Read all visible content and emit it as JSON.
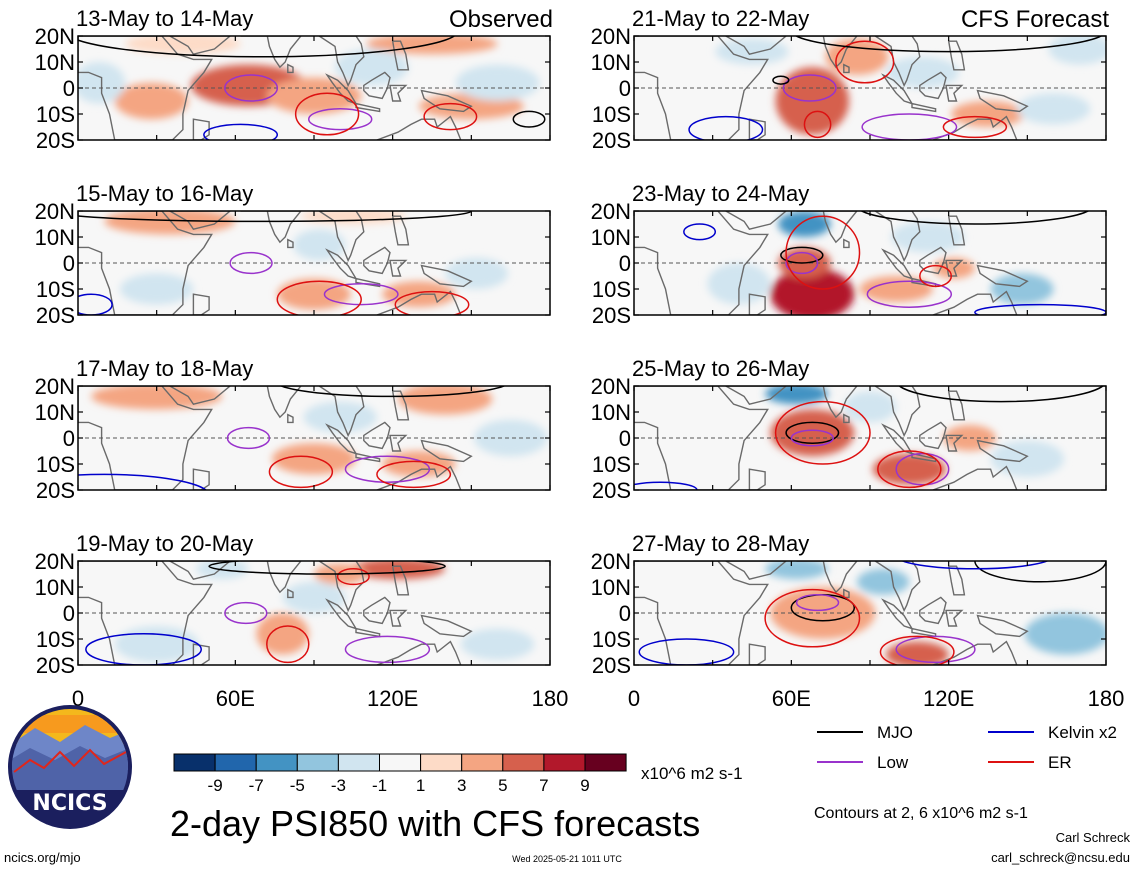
{
  "chart_data": {
    "type": "heatmap",
    "title": "2-day PSI850 with CFS forecasts",
    "source_url": "ncics.org/mjo",
    "timestamp": "Wed 2025-05-21 1011 UTC",
    "author": "Carl Schreck",
    "email": "carl_schreck@ncsu.edu",
    "contours_note": "Contours at 2, 6 x10^6 m2 s-1",
    "units": "x10^6 m2 s-1",
    "logo_text": "NCICS",
    "colorbar": {
      "levels": [
        "-9",
        "-7",
        "-5",
        "-3",
        "-1",
        "1",
        "3",
        "5",
        "7",
        "9"
      ],
      "colors": [
        "#08306b",
        "#2166ac",
        "#4393c3",
        "#92c5de",
        "#d1e5f0",
        "#f7f7f7",
        "#fddbc7",
        "#f4a582",
        "#d6604d",
        "#b2182b",
        "#67001f"
      ]
    },
    "x_ticks": [
      "0",
      "60E",
      "120E",
      "180"
    ],
    "y_ticks": [
      "20N",
      "10N",
      "0",
      "10S",
      "20S"
    ],
    "xlim": [
      0,
      180
    ],
    "ylim": [
      -20,
      20
    ],
    "legend": [
      {
        "name": "MJO",
        "color": "#000000"
      },
      {
        "name": "Kelvin x2",
        "color": "#0000cc"
      },
      {
        "name": "Low",
        "color": "#9933cc"
      },
      {
        "name": "ER",
        "color": "#dd1111"
      }
    ],
    "column_labels": [
      "Observed",
      "CFS Forecast"
    ],
    "panels": [
      {
        "title": "13-May to 14-May",
        "group": "Observed",
        "anomalies": [
          {
            "lon": 65,
            "lat": 1,
            "v": 6,
            "rx": 22,
            "ry": 8
          },
          {
            "lon": 90,
            "lat": -3,
            "v": 4,
            "rx": 18,
            "ry": 7
          },
          {
            "lon": 150,
            "lat": -7,
            "v": 4,
            "rx": 20,
            "ry": 5
          },
          {
            "lon": 28,
            "lat": -5,
            "v": 3,
            "rx": 14,
            "ry": 7
          },
          {
            "lon": 135,
            "lat": 17,
            "v": 3,
            "rx": 25,
            "ry": 4
          },
          {
            "lon": 40,
            "lat": 17,
            "v": 2,
            "rx": 22,
            "ry": 4
          },
          {
            "lon": 112,
            "lat": 8,
            "v": -3,
            "rx": 14,
            "ry": 7
          },
          {
            "lon": 160,
            "lat": 2,
            "v": -2,
            "rx": 16,
            "ry": 7
          },
          {
            "lon": 8,
            "lat": 2,
            "v": -2,
            "rx": 10,
            "ry": 8
          }
        ],
        "contours": [
          {
            "wave": "Low",
            "lon": 66,
            "lat": 0,
            "rx": 10,
            "ry": 5
          },
          {
            "wave": "Low",
            "lon": 100,
            "lat": -12,
            "rx": 12,
            "ry": 4
          },
          {
            "wave": "ER",
            "lon": 95,
            "lat": -10,
            "rx": 12,
            "ry": 8
          },
          {
            "wave": "ER",
            "lon": 142,
            "lat": -11,
            "rx": 10,
            "ry": 5
          },
          {
            "wave": "MJO",
            "lon": 172,
            "lat": -12,
            "rx": 6,
            "ry": 3
          },
          {
            "wave": "MJO",
            "lon": 70,
            "lat": 22,
            "rx": 75,
            "ry": 10
          },
          {
            "wave": "Kelvin x2",
            "lon": 62,
            "lat": -18,
            "rx": 14,
            "ry": 4
          }
        ]
      },
      {
        "title": "21-May to 22-May",
        "group": "CFS Forecast",
        "anomalies": [
          {
            "lon": 68,
            "lat": -5,
            "v": 6,
            "rx": 14,
            "ry": 13
          },
          {
            "lon": 85,
            "lat": 12,
            "v": 4,
            "rx": 12,
            "ry": 7
          },
          {
            "lon": 135,
            "lat": -10,
            "v": 4,
            "rx": 14,
            "ry": 5
          },
          {
            "lon": 110,
            "lat": 6,
            "v": -3,
            "rx": 14,
            "ry": 6
          },
          {
            "lon": 45,
            "lat": 14,
            "v": -2,
            "rx": 14,
            "ry": 5
          },
          {
            "lon": 170,
            "lat": 15,
            "v": -2,
            "rx": 12,
            "ry": 6
          },
          {
            "lon": 160,
            "lat": -8,
            "v": -2,
            "rx": 14,
            "ry": 6
          }
        ],
        "contours": [
          {
            "wave": "Low",
            "lon": 67,
            "lat": 0,
            "rx": 10,
            "ry": 5
          },
          {
            "wave": "Low",
            "lon": 105,
            "lat": -15,
            "rx": 18,
            "ry": 5
          },
          {
            "wave": "ER",
            "lon": 88,
            "lat": 10,
            "rx": 11,
            "ry": 8
          },
          {
            "wave": "ER",
            "lon": 70,
            "lat": -14,
            "rx": 5,
            "ry": 5
          },
          {
            "wave": "ER",
            "lon": 130,
            "lat": -15,
            "rx": 12,
            "ry": 4
          },
          {
            "wave": "MJO",
            "lon": 56,
            "lat": 3,
            "rx": 3,
            "ry": 1.5
          },
          {
            "wave": "MJO",
            "lon": 120,
            "lat": 22,
            "rx": 60,
            "ry": 8
          },
          {
            "wave": "Kelvin x2",
            "lon": 35,
            "lat": -16,
            "rx": 14,
            "ry": 5
          }
        ]
      },
      {
        "title": "15-May to 16-May",
        "group": "Observed",
        "anomalies": [
          {
            "lon": 35,
            "lat": 16,
            "v": 3,
            "rx": 25,
            "ry": 5
          },
          {
            "lon": 105,
            "lat": 18,
            "v": 2,
            "rx": 20,
            "ry": 3
          },
          {
            "lon": 90,
            "lat": -12,
            "v": 4,
            "rx": 14,
            "ry": 6
          },
          {
            "lon": 130,
            "lat": -12,
            "v": 3,
            "rx": 14,
            "ry": 5
          },
          {
            "lon": 92,
            "lat": 7,
            "v": -3,
            "rx": 10,
            "ry": 6
          },
          {
            "lon": 152,
            "lat": -4,
            "v": -3,
            "rx": 12,
            "ry": 6
          },
          {
            "lon": 30,
            "lat": -10,
            "v": -2,
            "rx": 14,
            "ry": 6
          }
        ],
        "contours": [
          {
            "wave": "Low",
            "lon": 66,
            "lat": 0,
            "rx": 8,
            "ry": 4
          },
          {
            "wave": "Low",
            "lon": 108,
            "lat": -12,
            "rx": 14,
            "ry": 4
          },
          {
            "wave": "ER",
            "lon": 92,
            "lat": -14,
            "rx": 16,
            "ry": 7
          },
          {
            "wave": "ER",
            "lon": 135,
            "lat": -16,
            "rx": 14,
            "ry": 5
          },
          {
            "wave": "MJO",
            "lon": 70,
            "lat": 20,
            "rx": 80,
            "ry": 4
          },
          {
            "wave": "Kelvin x2",
            "lon": 5,
            "lat": -16,
            "rx": 8,
            "ry": 4
          }
        ]
      },
      {
        "title": "23-May to 24-May",
        "group": "CFS Forecast",
        "anomalies": [
          {
            "lon": 68,
            "lat": -12,
            "v": 8,
            "rx": 16,
            "ry": 10
          },
          {
            "lon": 65,
            "lat": 0,
            "v": 5,
            "rx": 10,
            "ry": 6
          },
          {
            "lon": 100,
            "lat": -10,
            "v": 3,
            "rx": 14,
            "ry": 5
          },
          {
            "lon": 122,
            "lat": -2,
            "v": 3,
            "rx": 8,
            "ry": 4
          },
          {
            "lon": 65,
            "lat": 15,
            "v": -6,
            "rx": 10,
            "ry": 5
          },
          {
            "lon": 40,
            "lat": -8,
            "v": -3,
            "rx": 12,
            "ry": 8
          },
          {
            "lon": 112,
            "lat": 10,
            "v": -3,
            "rx": 14,
            "ry": 6
          },
          {
            "lon": 148,
            "lat": -10,
            "v": -4,
            "rx": 12,
            "ry": 6
          }
        ],
        "contours": [
          {
            "wave": "MJO",
            "lon": 64,
            "lat": 3,
            "rx": 8,
            "ry": 3
          },
          {
            "wave": "Low",
            "lon": 64,
            "lat": 0,
            "rx": 6,
            "ry": 4
          },
          {
            "wave": "Low",
            "lon": 105,
            "lat": -12,
            "rx": 16,
            "ry": 5
          },
          {
            "wave": "ER",
            "lon": 72,
            "lat": 4,
            "rx": 14,
            "ry": 14
          },
          {
            "wave": "ER",
            "lon": 115,
            "lat": -5,
            "rx": 6,
            "ry": 4
          },
          {
            "wave": "MJO",
            "lon": 130,
            "lat": 22,
            "rx": 45,
            "ry": 7
          },
          {
            "wave": "Kelvin x2",
            "lon": 25,
            "lat": 12,
            "rx": 6,
            "ry": 3
          },
          {
            "wave": "Kelvin x2",
            "lon": 155,
            "lat": -19,
            "rx": 25,
            "ry": 3
          }
        ]
      },
      {
        "title": "17-May to 18-May",
        "group": "Observed",
        "anomalies": [
          {
            "lon": 30,
            "lat": 16,
            "v": 3,
            "rx": 25,
            "ry": 5
          },
          {
            "lon": 140,
            "lat": 15,
            "v": 4,
            "rx": 18,
            "ry": 6
          },
          {
            "lon": 90,
            "lat": -8,
            "v": 3,
            "rx": 16,
            "ry": 6
          },
          {
            "lon": 130,
            "lat": -10,
            "v": 3,
            "rx": 14,
            "ry": 5
          },
          {
            "lon": 100,
            "lat": 8,
            "v": -2,
            "rx": 14,
            "ry": 6
          },
          {
            "lon": 165,
            "lat": 0,
            "v": -2,
            "rx": 14,
            "ry": 7
          }
        ],
        "contours": [
          {
            "wave": "Low",
            "lon": 65,
            "lat": 0,
            "rx": 8,
            "ry": 4
          },
          {
            "wave": "Low",
            "lon": 118,
            "lat": -12,
            "rx": 16,
            "ry": 5
          },
          {
            "wave": "ER",
            "lon": 85,
            "lat": -13,
            "rx": 12,
            "ry": 6
          },
          {
            "wave": "ER",
            "lon": 128,
            "lat": -14,
            "rx": 14,
            "ry": 5
          },
          {
            "wave": "MJO",
            "lon": 120,
            "lat": 22,
            "rx": 45,
            "ry": 6
          },
          {
            "wave": "Kelvin x2",
            "lon": 10,
            "lat": -22,
            "rx": 40,
            "ry": 8
          }
        ]
      },
      {
        "title": "25-May to 26-May",
        "group": "CFS Forecast",
        "anomalies": [
          {
            "lon": 70,
            "lat": 0,
            "v": 9,
            "rx": 10,
            "ry": 5
          },
          {
            "lon": 68,
            "lat": 2,
            "v": 6,
            "rx": 16,
            "ry": 9
          },
          {
            "lon": 105,
            "lat": -12,
            "v": 5,
            "rx": 14,
            "ry": 6
          },
          {
            "lon": 128,
            "lat": 0,
            "v": 3,
            "rx": 10,
            "ry": 5
          },
          {
            "lon": 62,
            "lat": 17,
            "v": -6,
            "rx": 12,
            "ry": 4
          },
          {
            "lon": 90,
            "lat": 12,
            "v": -3,
            "rx": 10,
            "ry": 6
          },
          {
            "lon": 150,
            "lat": -8,
            "v": -3,
            "rx": 14,
            "ry": 7
          }
        ],
        "contours": [
          {
            "wave": "MJO",
            "lon": 68,
            "lat": 2,
            "rx": 10,
            "ry": 4
          },
          {
            "wave": "Low",
            "lon": 68,
            "lat": 0,
            "rx": 8,
            "ry": 3
          },
          {
            "wave": "Low",
            "lon": 110,
            "lat": -12,
            "rx": 10,
            "ry": 6
          },
          {
            "wave": "ER",
            "lon": 72,
            "lat": 2,
            "rx": 18,
            "ry": 12
          },
          {
            "wave": "ER",
            "lon": 105,
            "lat": -12,
            "rx": 12,
            "ry": 7
          },
          {
            "wave": "MJO",
            "lon": 140,
            "lat": 22,
            "rx": 40,
            "ry": 8
          },
          {
            "wave": "Kelvin x2",
            "lon": 10,
            "lat": -20,
            "rx": 14,
            "ry": 3
          }
        ]
      },
      {
        "title": "19-May to 20-May",
        "group": "Observed",
        "anomalies": [
          {
            "lon": 122,
            "lat": 17,
            "v": 5,
            "rx": 18,
            "ry": 4
          },
          {
            "lon": 78,
            "lat": -8,
            "v": 4,
            "rx": 10,
            "ry": 8
          },
          {
            "lon": 100,
            "lat": 15,
            "v": 3,
            "rx": 10,
            "ry": 4
          },
          {
            "lon": 55,
            "lat": 17,
            "v": -3,
            "rx": 10,
            "ry": 4
          },
          {
            "lon": 90,
            "lat": 6,
            "v": -2,
            "rx": 12,
            "ry": 6
          },
          {
            "lon": 30,
            "lat": -12,
            "v": -3,
            "rx": 16,
            "ry": 7
          },
          {
            "lon": 160,
            "lat": -12,
            "v": -2,
            "rx": 14,
            "ry": 6
          }
        ],
        "contours": [
          {
            "wave": "Low",
            "lon": 64,
            "lat": 0,
            "rx": 8,
            "ry": 4
          },
          {
            "wave": "Low",
            "lon": 118,
            "lat": -14,
            "rx": 16,
            "ry": 5
          },
          {
            "wave": "ER",
            "lon": 80,
            "lat": -12,
            "rx": 8,
            "ry": 7
          },
          {
            "wave": "ER",
            "lon": 105,
            "lat": 14,
            "rx": 6,
            "ry": 3
          },
          {
            "wave": "MJO",
            "lon": 95,
            "lat": 18,
            "rx": 45,
            "ry": 3
          },
          {
            "wave": "Kelvin x2",
            "lon": 25,
            "lat": -14,
            "rx": 22,
            "ry": 6
          }
        ]
      },
      {
        "title": "27-May to 28-May",
        "group": "CFS Forecast",
        "anomalies": [
          {
            "lon": 68,
            "lat": 4,
            "v": 7,
            "rx": 12,
            "ry": 5
          },
          {
            "lon": 72,
            "lat": 0,
            "v": 4,
            "rx": 20,
            "ry": 10
          },
          {
            "lon": 108,
            "lat": -16,
            "v": 6,
            "rx": 12,
            "ry": 5
          },
          {
            "lon": 62,
            "lat": 17,
            "v": -5,
            "rx": 12,
            "ry": 4
          },
          {
            "lon": 95,
            "lat": 12,
            "v": -5,
            "rx": 10,
            "ry": 5
          },
          {
            "lon": 165,
            "lat": -8,
            "v": -4,
            "rx": 16,
            "ry": 8
          }
        ],
        "contours": [
          {
            "wave": "MJO",
            "lon": 72,
            "lat": 2,
            "rx": 12,
            "ry": 5
          },
          {
            "wave": "Low",
            "lon": 70,
            "lat": 4,
            "rx": 8,
            "ry": 3
          },
          {
            "wave": "Low",
            "lon": 115,
            "lat": -14,
            "rx": 15,
            "ry": 5
          },
          {
            "wave": "ER",
            "lon": 68,
            "lat": -2,
            "rx": 18,
            "ry": 11
          },
          {
            "wave": "ER",
            "lon": 108,
            "lat": -15,
            "rx": 14,
            "ry": 6
          },
          {
            "wave": "MJO",
            "lon": 155,
            "lat": 20,
            "rx": 25,
            "ry": 8
          },
          {
            "wave": "Kelvin x2",
            "lon": 20,
            "lat": -15,
            "rx": 18,
            "ry": 5
          },
          {
            "wave": "Kelvin x2",
            "lon": 130,
            "lat": 22,
            "rx": 30,
            "ry": 5
          }
        ]
      }
    ]
  }
}
